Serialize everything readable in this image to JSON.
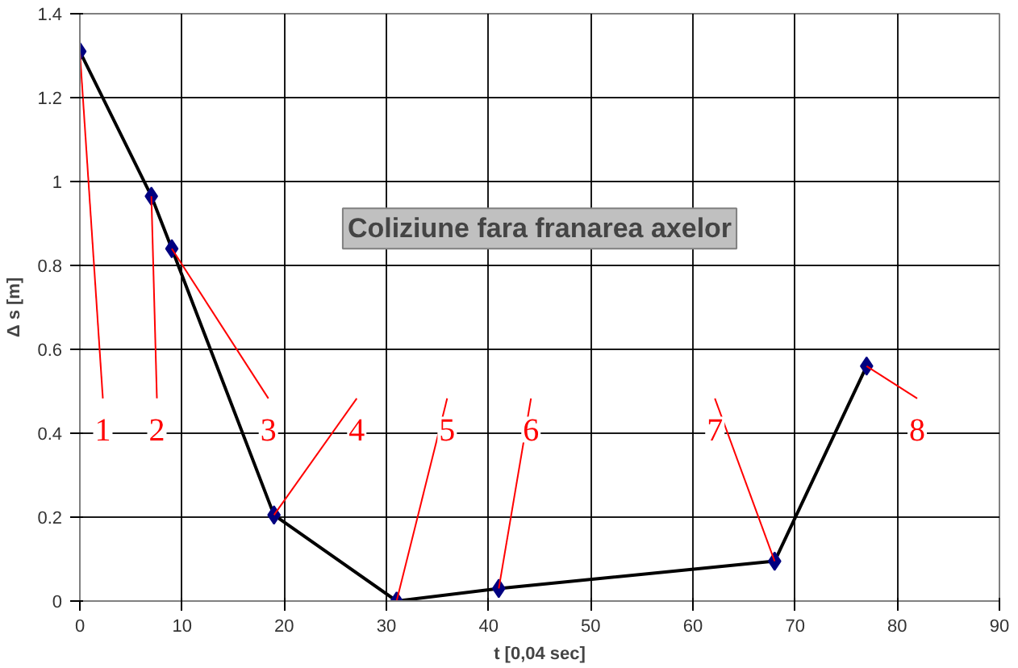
{
  "chart_data": {
    "type": "line",
    "title": "Coliziune fara franarea axelor",
    "xlabel": "t [0,04 sec]",
    "ylabel": "Δ s [m]",
    "x": [
      0,
      7,
      9,
      19,
      31,
      41,
      68,
      77
    ],
    "series": [
      {
        "color": "#000080",
        "values": [
          1.31,
          0.965,
          0.84,
          0.205,
          0,
          0.03,
          0.095,
          0.56
        ]
      }
    ],
    "xlim": [
      0,
      90
    ],
    "xticks": [
      0,
      10,
      20,
      30,
      40,
      50,
      60,
      70,
      80,
      90
    ],
    "ylim": [
      0,
      1.4
    ],
    "yticks": [
      0,
      0.2,
      0.4,
      0.6,
      0.8,
      1,
      1.2,
      1.4
    ],
    "grid": true,
    "marker": "diamond",
    "line_style": "solid",
    "annotations": [
      {
        "text": "1",
        "x": 0,
        "y": 1.31
      },
      {
        "text": "2",
        "x": 7,
        "y": 0.965
      },
      {
        "text": "3",
        "x": 9,
        "y": 0.84
      },
      {
        "text": "4",
        "x": 19,
        "y": 0.205
      },
      {
        "text": "5",
        "x": 31,
        "y": 0
      },
      {
        "text": "6",
        "x": 41,
        "y": 0.03
      },
      {
        "text": "7",
        "x": 68,
        "y": 0.095
      },
      {
        "text": "8",
        "x": 77,
        "y": 0.56
      }
    ]
  }
}
